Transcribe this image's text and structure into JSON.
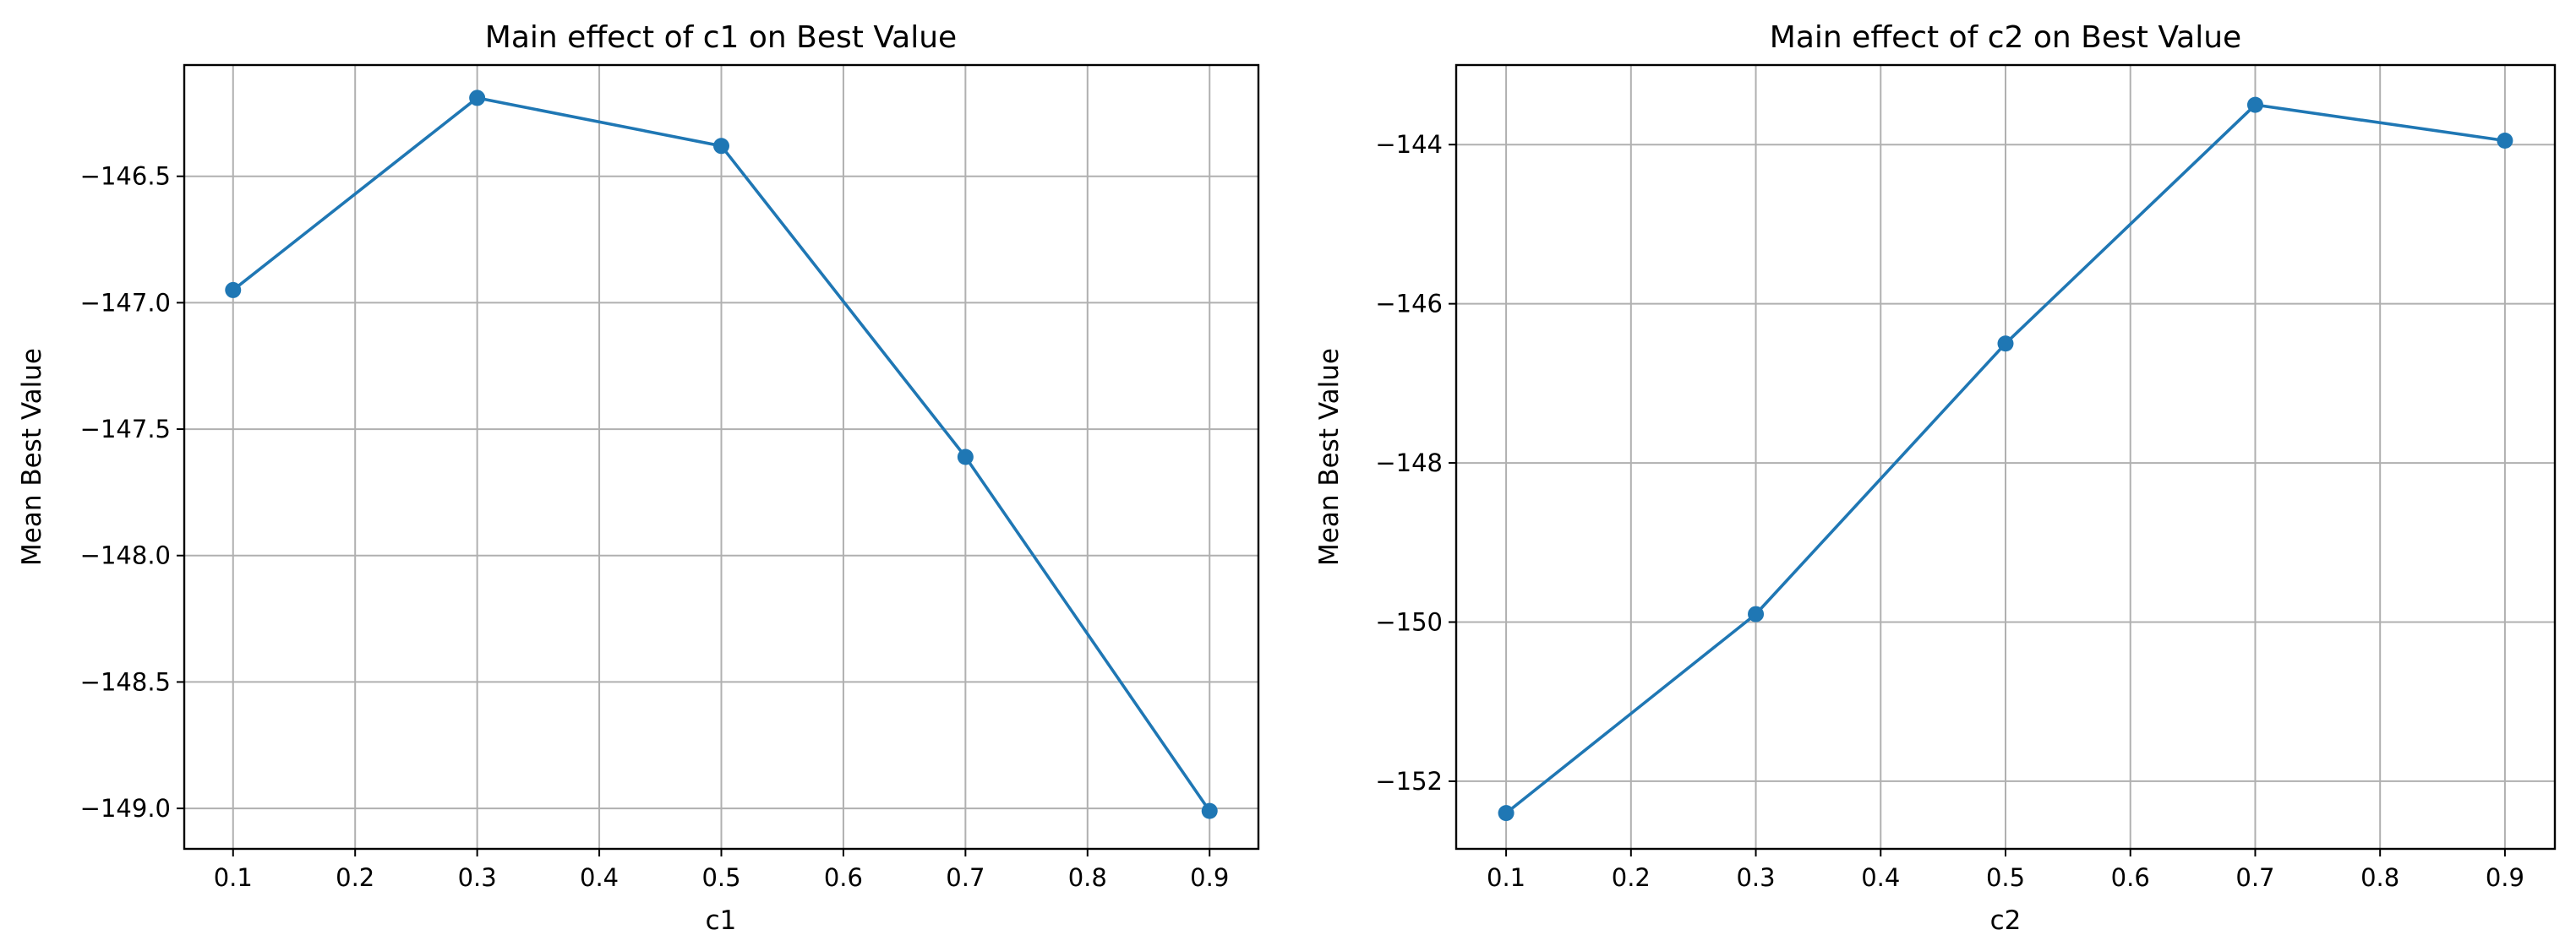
{
  "colors": {
    "series": "#1f77b4",
    "grid": "#b0b0b0",
    "background": "#ffffff"
  },
  "chart_data": [
    {
      "type": "line",
      "title": "Main effect of c1 on Best Value",
      "xlabel": "c1",
      "ylabel": "Mean Best Value",
      "xlim": [
        0.06,
        0.94
      ],
      "ylim": [
        -149.16,
        -146.06
      ],
      "xticks": [
        0.1,
        0.2,
        0.3,
        0.4,
        0.5,
        0.6,
        0.7,
        0.8,
        0.9
      ],
      "xtick_labels": [
        "0.1",
        "0.2",
        "0.3",
        "0.4",
        "0.5",
        "0.6",
        "0.7",
        "0.8",
        "0.9"
      ],
      "yticks": [
        -146.5,
        -147.0,
        -147.5,
        -148.0,
        -148.5,
        -149.0
      ],
      "ytick_labels": [
        "−146.5",
        "−147.0",
        "−147.5",
        "−148.0",
        "−148.5",
        "−149.0"
      ],
      "grid": true,
      "marker": "circle",
      "series": [
        {
          "x": [
            0.1,
            0.3,
            0.5,
            0.7,
            0.9
          ],
          "values": [
            -146.95,
            -146.19,
            -146.38,
            -147.61,
            -149.01
          ]
        }
      ]
    },
    {
      "type": "line",
      "title": "Main effect of c2 on Best Value",
      "xlabel": "c2",
      "ylabel": "Mean Best Value",
      "xlim": [
        0.06,
        0.94
      ],
      "ylim": [
        -152.85,
        -143.0
      ],
      "xticks": [
        0.1,
        0.2,
        0.3,
        0.4,
        0.5,
        0.6,
        0.7,
        0.8,
        0.9
      ],
      "xtick_labels": [
        "0.1",
        "0.2",
        "0.3",
        "0.4",
        "0.5",
        "0.6",
        "0.7",
        "0.8",
        "0.9"
      ],
      "yticks": [
        -144,
        -146,
        -148,
        -150,
        -152
      ],
      "ytick_labels": [
        "−144",
        "−146",
        "−148",
        "−150",
        "−152"
      ],
      "grid": true,
      "marker": "circle",
      "series": [
        {
          "x": [
            0.1,
            0.3,
            0.5,
            0.7,
            0.9
          ],
          "values": [
            -152.4,
            -149.9,
            -146.5,
            -143.5,
            -143.95
          ]
        }
      ]
    }
  ]
}
